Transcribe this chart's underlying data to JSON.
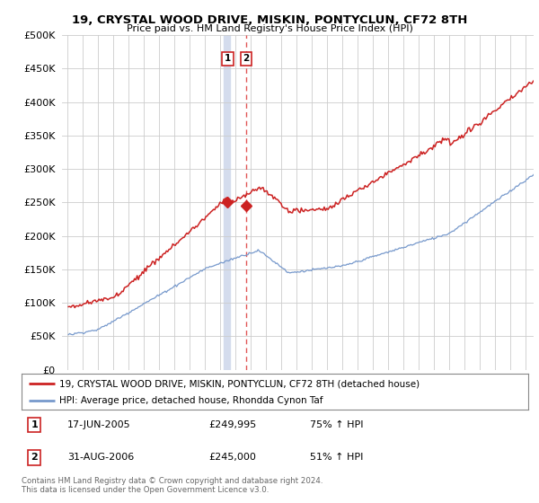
{
  "title": "19, CRYSTAL WOOD DRIVE, MISKIN, PONTYCLUN, CF72 8TH",
  "subtitle": "Price paid vs. HM Land Registry's House Price Index (HPI)",
  "legend_line1": "19, CRYSTAL WOOD DRIVE, MISKIN, PONTYCLUN, CF72 8TH (detached house)",
  "legend_line2": "HPI: Average price, detached house, Rhondda Cynon Taf",
  "red_color": "#cc2222",
  "blue_color": "#7799cc",
  "vline1_color": "#aabbdd",
  "vline2_color": "#dd4444",
  "transaction1": {
    "date": "17-JUN-2005",
    "price": 249995,
    "pct": "75%",
    "dir": "↑"
  },
  "transaction2": {
    "date": "31-AUG-2006",
    "price": 245000,
    "pct": "51%",
    "dir": "↑"
  },
  "footnote1": "Contains HM Land Registry data © Crown copyright and database right 2024.",
  "footnote2": "This data is licensed under the Open Government Licence v3.0.",
  "ylim": [
    0,
    500000
  ],
  "yticks": [
    0,
    50000,
    100000,
    150000,
    200000,
    250000,
    300000,
    350000,
    400000,
    450000,
    500000
  ],
  "start_year": 1995,
  "end_year": 2025
}
